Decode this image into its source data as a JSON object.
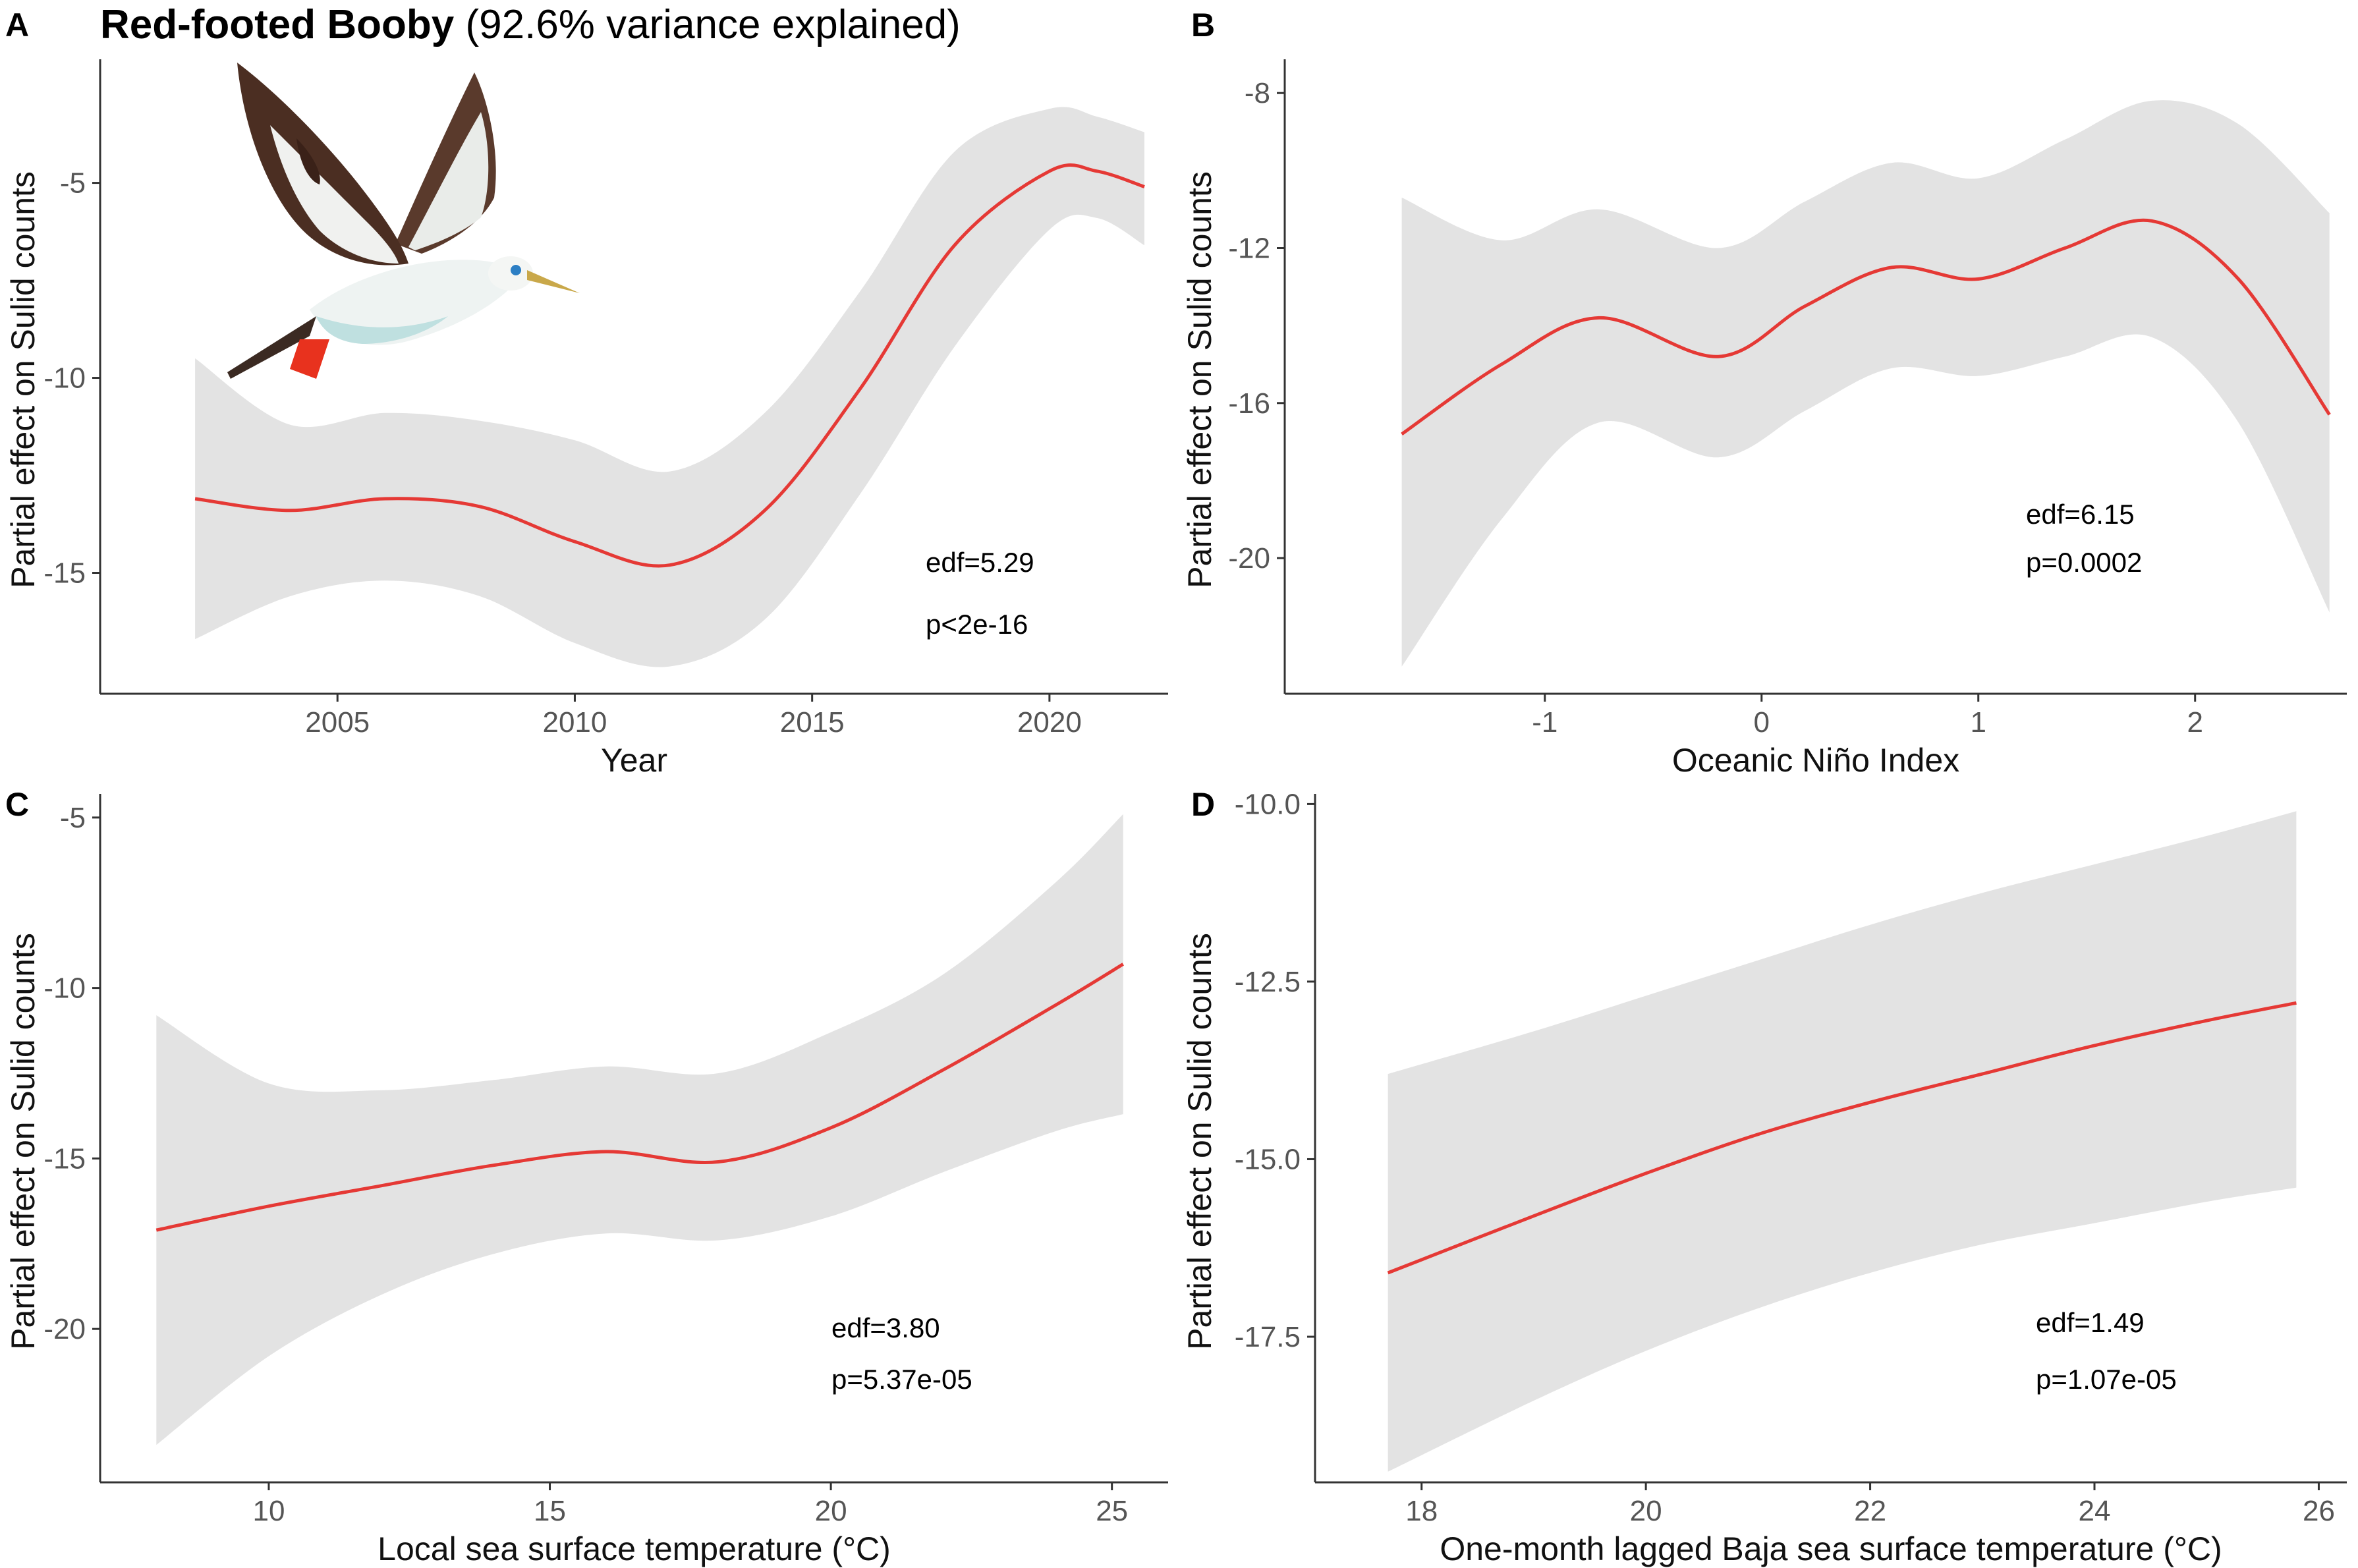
{
  "figure": {
    "title_bold": "Red-footed Booby",
    "title_rest": " (92.6% variance explained)",
    "bird_illustration": "red-footed-booby-illustration"
  },
  "chart_data": [
    {
      "id": "A",
      "letter": "A",
      "type": "line",
      "xlabel": "Year",
      "ylabel": "Partial effect on Sulid counts",
      "xlim": [
        2000.0,
        2022.5
      ],
      "ylim": [
        -18.1,
        -2.0
      ],
      "xticks": [
        2005,
        2010,
        2015,
        2020
      ],
      "xtick_labels": [
        "2005",
        "2010",
        "2015",
        "2020"
      ],
      "yticks": [
        -15,
        -10,
        -5
      ],
      "ytick_labels": [
        "-15",
        "-10",
        "-5"
      ],
      "series": [
        {
          "name": "smooth",
          "x": [
            2002,
            2004,
            2006,
            2008,
            2010,
            2012,
            2014,
            2016,
            2018,
            2020,
            2021,
            2022
          ],
          "y": [
            -13.1,
            -13.4,
            -13.1,
            -13.3,
            -14.2,
            -14.8,
            -13.4,
            -10.3,
            -6.6,
            -4.7,
            -4.7,
            -5.1
          ],
          "lower": [
            -16.7,
            -15.6,
            -15.2,
            -15.6,
            -16.8,
            -17.4,
            -16.2,
            -13.0,
            -9.2,
            -6.2,
            -5.9,
            -6.6
          ],
          "upper": [
            -9.5,
            -11.2,
            -10.9,
            -11.1,
            -11.6,
            -12.4,
            -10.9,
            -7.8,
            -4.2,
            -3.1,
            -3.3,
            -3.7
          ]
        }
      ],
      "annotations": [
        "edf=5.29",
        "p<2e-16"
      ]
    },
    {
      "id": "B",
      "letter": "B",
      "type": "line",
      "xlabel": "Oceanic Niño Index",
      "ylabel": "Partial effect on Sulid counts",
      "xlim": [
        -2.2,
        2.7
      ],
      "ylim": [
        -23.5,
        -7.3
      ],
      "xticks": [
        -1,
        0,
        1,
        2
      ],
      "xtick_labels": [
        "-1",
        "0",
        "1",
        "2"
      ],
      "yticks": [
        -20,
        -16,
        -12,
        -8
      ],
      "ytick_labels": [
        "-20",
        "-16",
        "-12",
        "-8"
      ],
      "series": [
        {
          "name": "smooth",
          "x": [
            -1.66,
            -1.2,
            -0.75,
            -0.2,
            0.2,
            0.6,
            1.0,
            1.4,
            1.8,
            2.2,
            2.62
          ],
          "y": [
            -16.8,
            -15.0,
            -13.8,
            -14.8,
            -13.5,
            -12.5,
            -12.8,
            -12.0,
            -11.3,
            -12.8,
            -16.3
          ],
          "lower": [
            -22.8,
            -19.0,
            -16.5,
            -17.4,
            -16.2,
            -15.1,
            -15.3,
            -14.8,
            -14.3,
            -16.5,
            -21.4
          ],
          "upper": [
            -10.7,
            -11.8,
            -11.0,
            -12.0,
            -10.8,
            -9.8,
            -10.2,
            -9.2,
            -8.2,
            -8.8,
            -11.1
          ]
        }
      ],
      "annotations": [
        "edf=6.15",
        "p=0.0002"
      ]
    },
    {
      "id": "C",
      "letter": "C",
      "type": "line",
      "xlabel": "Local sea surface temperature (°C)",
      "ylabel": "Partial effect on Sulid counts",
      "xlim": [
        7.0,
        26.0
      ],
      "ylim": [
        -24.5,
        -4.5
      ],
      "xticks": [
        10,
        15,
        20,
        25
      ],
      "xtick_labels": [
        "10",
        "15",
        "20",
        "25"
      ],
      "yticks": [
        -20,
        -15,
        -10,
        -5
      ],
      "ytick_labels": [
        "-20",
        "-15",
        "-10",
        "-5"
      ],
      "series": [
        {
          "name": "smooth",
          "x": [
            8.0,
            10.0,
            12.0,
            14.0,
            16.0,
            18.0,
            20.0,
            22.0,
            24.0,
            25.2
          ],
          "y": [
            -17.1,
            -16.4,
            -15.8,
            -15.2,
            -14.8,
            -15.1,
            -14.1,
            -12.4,
            -10.5,
            -9.3
          ],
          "lower": [
            -23.4,
            -20.8,
            -19.0,
            -17.8,
            -17.2,
            -17.4,
            -16.7,
            -15.4,
            -14.2,
            -13.7
          ],
          "upper": [
            -10.8,
            -12.8,
            -13.0,
            -12.7,
            -12.3,
            -12.5,
            -11.3,
            -9.6,
            -6.9,
            -4.9
          ]
        }
      ],
      "annotations": [
        "edf=3.80",
        "p=5.37e-05"
      ]
    },
    {
      "id": "D",
      "letter": "D",
      "type": "line",
      "xlabel": "One-month lagged Baja sea surface temperature (°C)",
      "ylabel": "Partial effect on Sulid counts",
      "xlim": [
        17.05,
        26.25
      ],
      "ylim": [
        -19.55,
        -9.95
      ],
      "xticks": [
        18,
        20,
        22,
        24,
        26
      ],
      "xtick_labels": [
        "18",
        "20",
        "22",
        "24",
        "26"
      ],
      "yticks": [
        -17.5,
        -15.0,
        -12.5,
        -10.0
      ],
      "ytick_labels": [
        "-17.5",
        "-15.0",
        "-12.5",
        "-10.0"
      ],
      "series": [
        {
          "name": "smooth",
          "x": [
            17.7,
            19.0,
            20.0,
            21.0,
            22.0,
            23.0,
            24.0,
            25.0,
            25.8
          ],
          "y": [
            -16.6,
            -15.8,
            -15.2,
            -14.65,
            -14.2,
            -13.8,
            -13.4,
            -13.05,
            -12.8
          ],
          "lower": [
            -19.4,
            -18.4,
            -17.7,
            -17.1,
            -16.6,
            -16.2,
            -15.9,
            -15.6,
            -15.4
          ],
          "upper": [
            -13.8,
            -13.2,
            -12.7,
            -12.2,
            -11.7,
            -11.25,
            -10.85,
            -10.45,
            -10.1
          ]
        }
      ],
      "annotations": [
        "edf=1.49",
        "p=1.07e-05"
      ]
    }
  ],
  "colors": {
    "line": "#e53935",
    "band": "#e3e3e3",
    "axis": "#333333"
  }
}
